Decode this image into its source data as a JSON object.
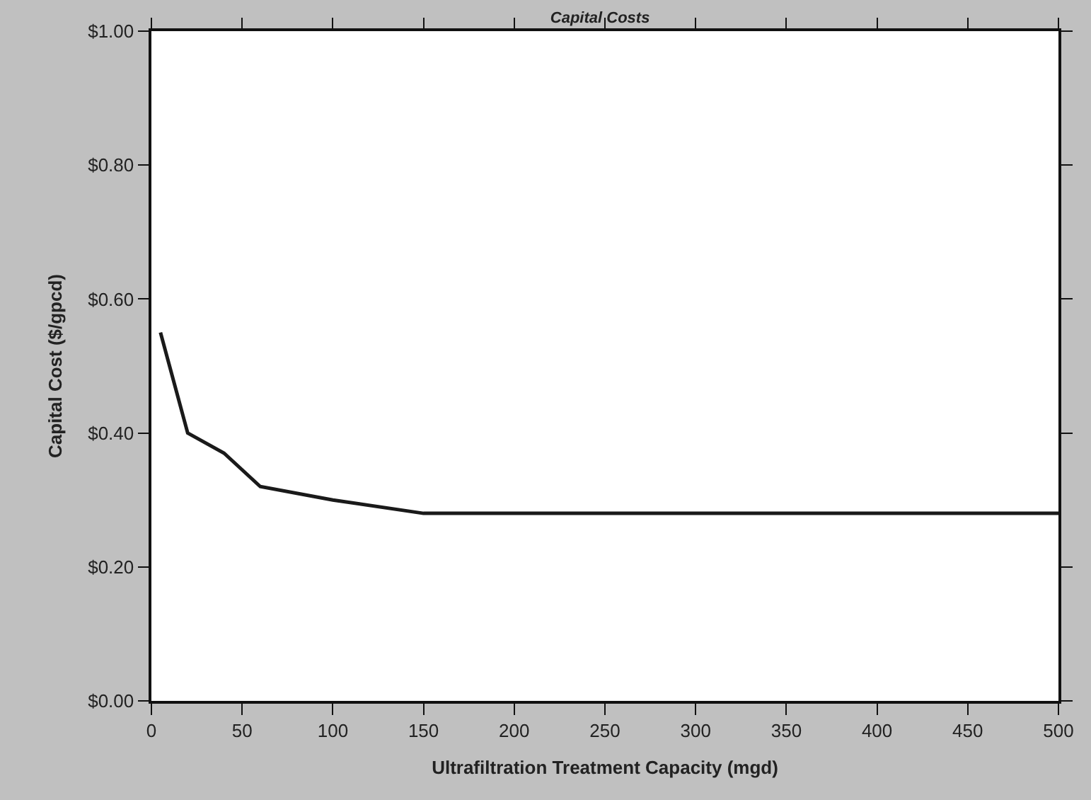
{
  "chart_data": {
    "type": "line",
    "title": "Capital Costs",
    "xlabel": "Ultrafiltration Treatment Capacity (mgd)",
    "ylabel": "Capital Cost ($/gpcd)",
    "x": [
      5,
      20,
      40,
      60,
      100,
      150,
      500
    ],
    "series": [
      {
        "color": "#1a1a1a",
        "values": [
          0.55,
          0.4,
          0.37,
          0.32,
          0.3,
          0.28,
          0.28
        ]
      }
    ],
    "xlim": [
      0,
      500
    ],
    "xticks": [
      0,
      50,
      100,
      150,
      200,
      250,
      300,
      350,
      400,
      450,
      500
    ],
    "ylim": [
      0,
      1
    ],
    "yticks": [
      {
        "value": 0,
        "label": "$0.00"
      },
      {
        "value": 0.2,
        "label": "$0.20"
      },
      {
        "value": 0.4,
        "label": "$0.40"
      },
      {
        "value": 0.6,
        "label": "$0.60"
      },
      {
        "value": 0.8,
        "label": "$0.80"
      },
      {
        "value": 1,
        "label": "$1.00"
      }
    ],
    "marker": "none",
    "line_style": "solid"
  }
}
